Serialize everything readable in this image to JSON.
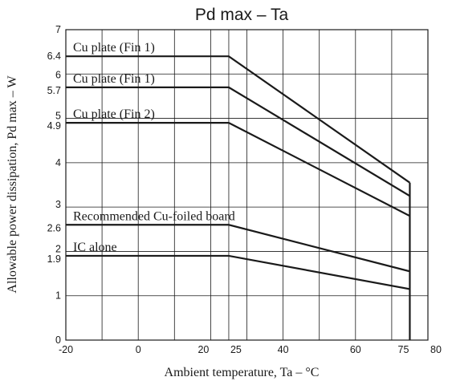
{
  "chart_data": {
    "type": "line",
    "title": "Pd max – Ta",
    "xlabel": "Ambient temperature, Ta – °C",
    "ylabel": "Allowable power dissipation, Pd max – W",
    "xlim": [
      -20,
      80
    ],
    "ylim": [
      0,
      7
    ],
    "x_ticks": [
      {
        "value": -20,
        "label": "-20"
      },
      {
        "value": 0,
        "label": "0"
      },
      {
        "value": 20,
        "label": "20"
      },
      {
        "value": 25,
        "label": "25"
      },
      {
        "value": 40,
        "label": "40"
      },
      {
        "value": 60,
        "label": "60"
      },
      {
        "value": 75,
        "label": "75"
      },
      {
        "value": 80,
        "label": "80"
      }
    ],
    "y_ticks": [
      {
        "value": 0,
        "label": "0"
      },
      {
        "value": 1,
        "label": "1"
      },
      {
        "value": 1.9,
        "label": "1.9"
      },
      {
        "value": 2,
        "label": "2"
      },
      {
        "value": 2.6,
        "label": "2.6"
      },
      {
        "value": 3,
        "label": "3"
      },
      {
        "value": 4,
        "label": "4"
      },
      {
        "value": 4.9,
        "label": "4.9"
      },
      {
        "value": 5,
        "label": "5"
      },
      {
        "value": 5.7,
        "label": "5.7"
      },
      {
        "value": 6,
        "label": "6"
      },
      {
        "value": 6.4,
        "label": "6.4"
      },
      {
        "value": 7,
        "label": "7"
      }
    ],
    "grid": true,
    "series": [
      {
        "name": "Cu plate (Fin 1)",
        "x": [
          -20,
          25,
          75
        ],
        "y": [
          6.4,
          6.4,
          3.55
        ]
      },
      {
        "name": "Cu plate (Fin 1)",
        "x": [
          -20,
          25,
          75
        ],
        "y": [
          5.7,
          5.7,
          3.25
        ]
      },
      {
        "name": "Cu plate (Fin 2)",
        "x": [
          -20,
          25,
          75
        ],
        "y": [
          4.9,
          4.9,
          2.8
        ]
      },
      {
        "name": "Recommended Cu-foiled board",
        "x": [
          -20,
          25,
          75
        ],
        "y": [
          2.6,
          2.6,
          1.55
        ]
      },
      {
        "name": "IC alone",
        "x": [
          -20,
          25,
          75
        ],
        "y": [
          1.9,
          1.9,
          1.15
        ]
      }
    ],
    "cutoff_x": 75
  }
}
